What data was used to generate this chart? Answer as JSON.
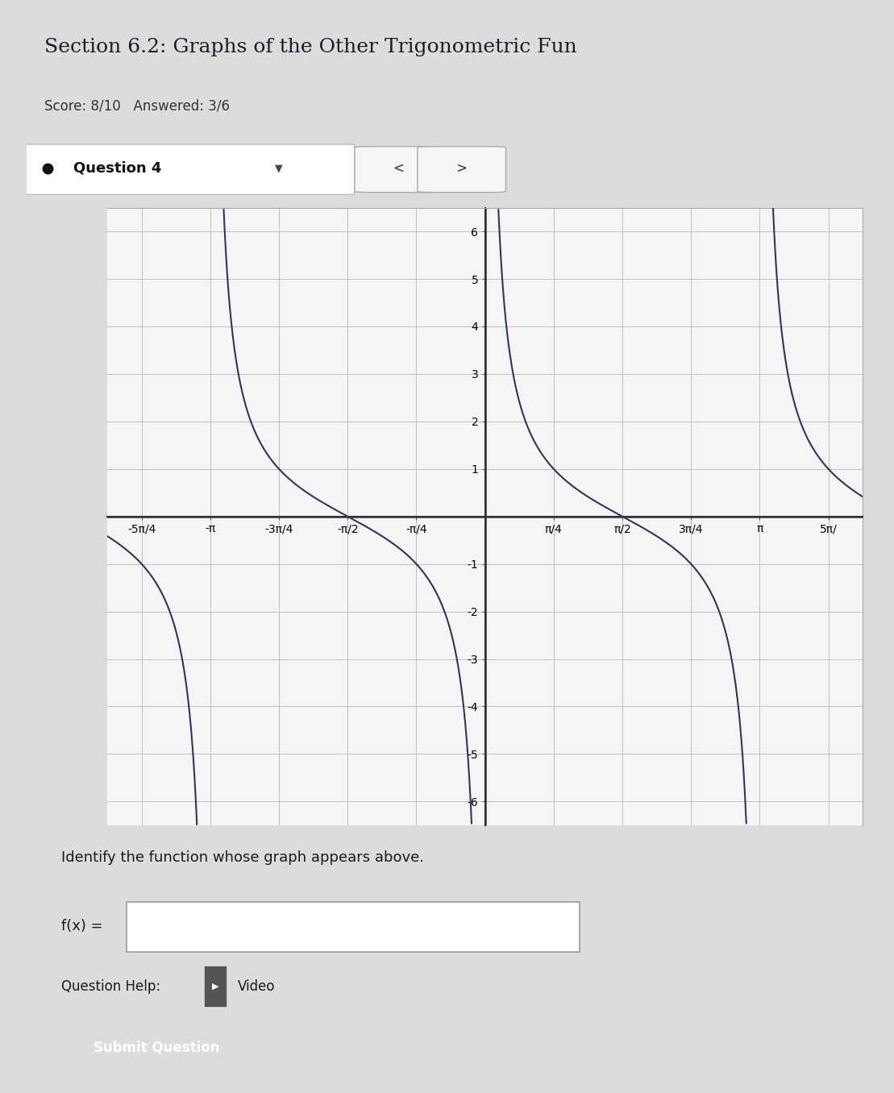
{
  "title": "Section 6.2: Graphs of the Other Trigonometric Fun",
  "score_text": "Score: 8/10   Answered: 3/6",
  "question_label": "Question 4",
  "question_text": "Identify the function whose graph appears above.",
  "fx_label": "f(x) =",
  "help_text": "Question Help:",
  "video_text": "Video",
  "submit_text": "Submit Question",
  "ylim": [
    -6.5,
    6.5
  ],
  "yticks": [
    -6,
    -5,
    -4,
    -3,
    -2,
    -1,
    1,
    2,
    3,
    4,
    5,
    6
  ],
  "xtick_labels": [
    "-5π/4",
    "-π",
    "-3π/4",
    "-π/2",
    "-π/4",
    "π/4",
    "π/2",
    "3π/4",
    "π",
    "5π/"
  ],
  "xtick_vals_pi": [
    -1.25,
    -1.0,
    -0.75,
    -0.5,
    -0.25,
    0.25,
    0.5,
    0.75,
    1.0,
    1.25
  ],
  "page_bg": "#dcdcdc",
  "header_bg": "#e8e8e8",
  "white_bg": "#ffffff",
  "plot_bg": "#f5f5f5",
  "curve_color": "#2d3560",
  "grid_color": "#c0c0c0",
  "axis_color": "#333333",
  "red_bar_color": "#cc0000",
  "submit_btn_color": "#1a56db",
  "title_fontsize": 18,
  "score_fontsize": 12,
  "tick_fontsize": 10
}
